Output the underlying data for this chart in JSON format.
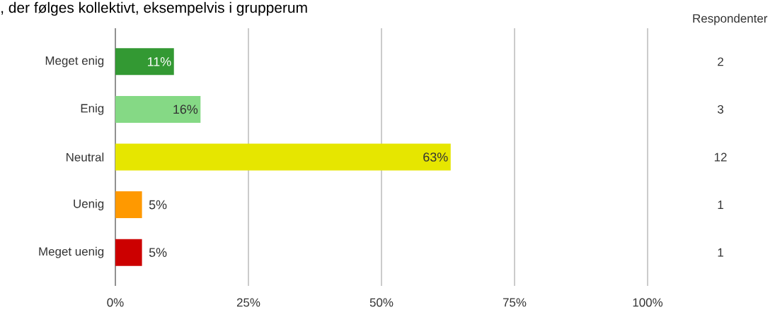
{
  "chart_data": {
    "type": "bar",
    "orientation": "horizontal",
    "title": ", der følges kollektivt, eksempelvis i grupperum",
    "categories": [
      "Meget enig",
      "Enig",
      "Neutral",
      "Uenig",
      "Meget uenig"
    ],
    "values": [
      11,
      16,
      63,
      5,
      5
    ],
    "value_labels": [
      "11%",
      "16%",
      "63%",
      "5%",
      "5%"
    ],
    "colors": [
      "#339933",
      "#85d985",
      "#e6e600",
      "#ff9900",
      "#cc0000"
    ],
    "xlim": [
      0,
      100
    ],
    "xticks": [
      {
        "value": 0,
        "label": "0%"
      },
      {
        "value": 25,
        "label": "25%"
      },
      {
        "value": 50,
        "label": "50%"
      },
      {
        "value": 75,
        "label": "75%"
      },
      {
        "value": 100,
        "label": "100%"
      }
    ],
    "grid": "x",
    "annotations": [
      "Respondenter",
      "2",
      "3",
      "12",
      "1",
      "1"
    ]
  }
}
